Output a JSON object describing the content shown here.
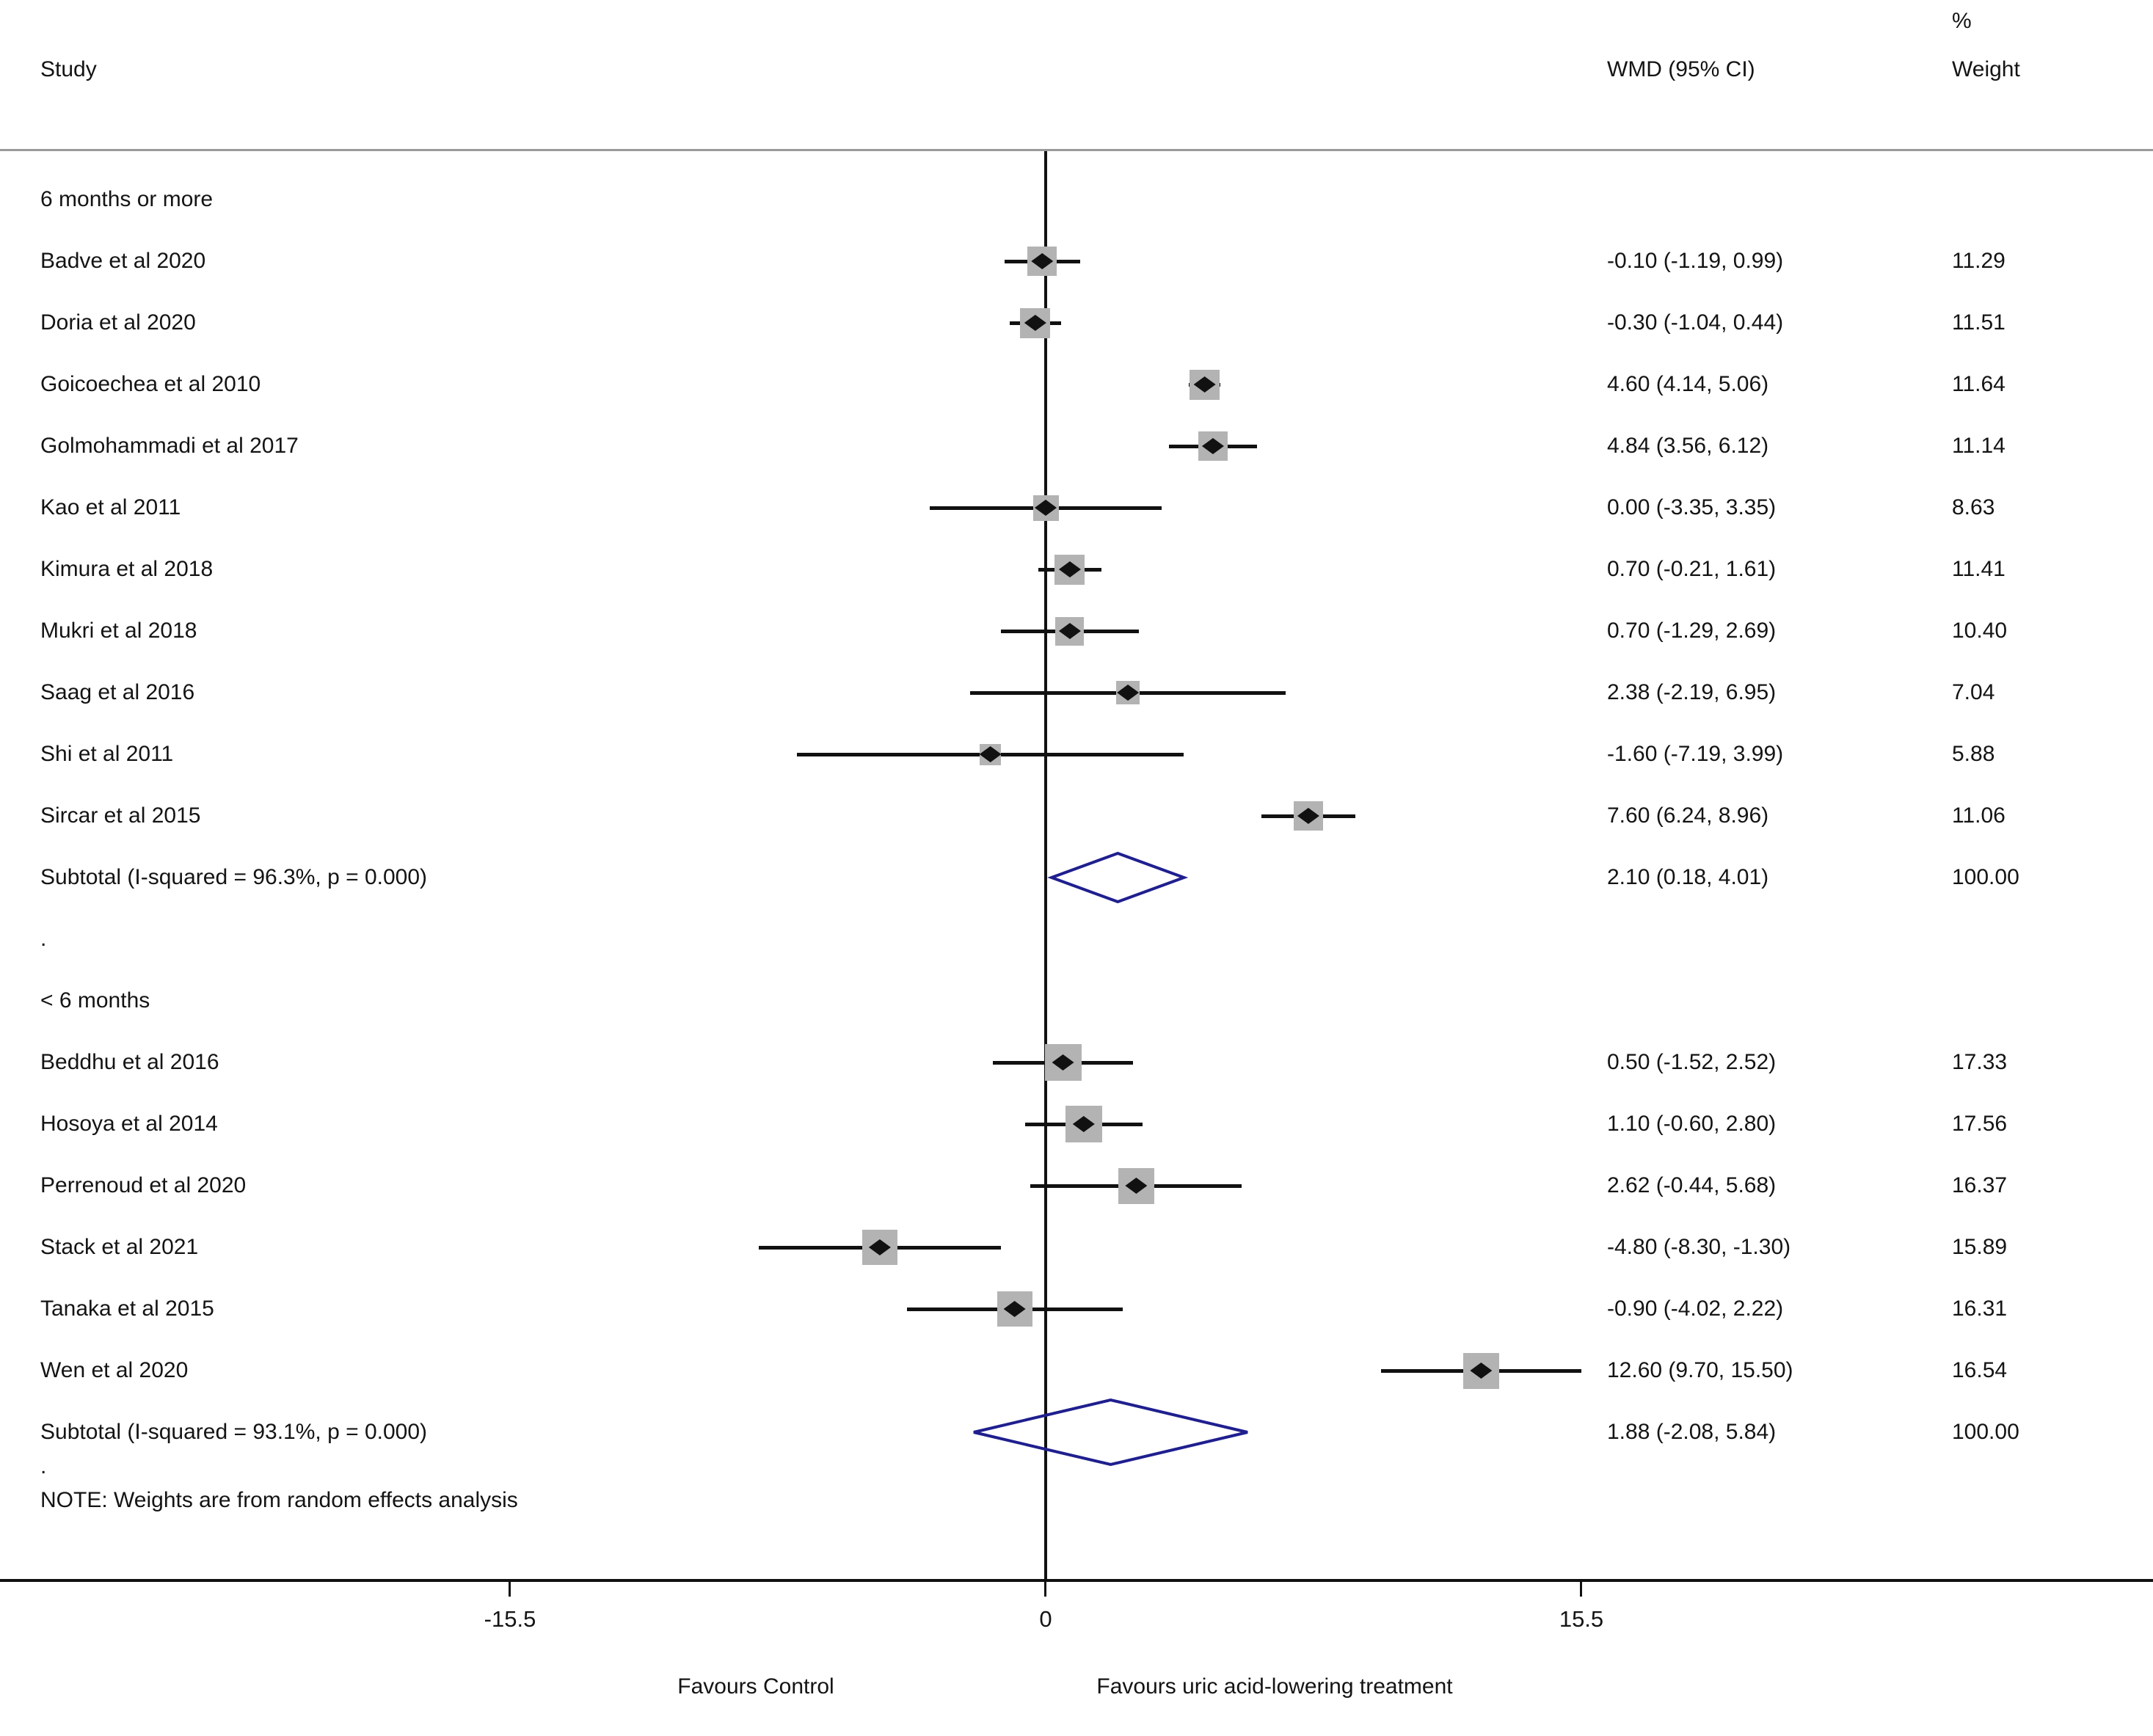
{
  "header": {
    "study": "Study",
    "wmd": "WMD (95% CI)",
    "percent": "%",
    "weight": "Weight"
  },
  "dot": ".",
  "note": "NOTE: Weights are from random effects analysis",
  "axis": {
    "ticks": [
      -15.5,
      0,
      15.5
    ],
    "tick_labels": [
      "-15.5",
      "0",
      "15.5"
    ],
    "left_label": "Favours Control",
    "right_label": "Favours uric acid-lowering treatment"
  },
  "colors": {
    "text": "#141414",
    "ci_line": "#111111",
    "square": "#b3b3b3",
    "marker": "#111111",
    "diamond": "#1f1f8f"
  },
  "chart_data": {
    "type": "forest",
    "title": "",
    "xlabel_left": "Favours Control",
    "xlabel_right": "Favours uric acid-lowering treatment",
    "x_ticks": [
      -15.5,
      0,
      15.5
    ],
    "effect_measure": "WMD (95% CI)",
    "groups": [
      {
        "label": "6 months or more",
        "studies": [
          {
            "name": "Badve et al 2020",
            "wmd": -0.1,
            "lo": -1.19,
            "hi": 0.99,
            "ci_label": "-0.10 (-1.19, 0.99)",
            "weight": 11.29,
            "weight_label": "11.29"
          },
          {
            "name": "Doria et al 2020",
            "wmd": -0.3,
            "lo": -1.04,
            "hi": 0.44,
            "ci_label": "-0.30 (-1.04, 0.44)",
            "weight": 11.51,
            "weight_label": "11.51"
          },
          {
            "name": "Goicoechea et al 2010",
            "wmd": 4.6,
            "lo": 4.14,
            "hi": 5.06,
            "ci_label": "4.60 (4.14, 5.06)",
            "weight": 11.64,
            "weight_label": "11.64"
          },
          {
            "name": "Golmohammadi et al 2017",
            "wmd": 4.84,
            "lo": 3.56,
            "hi": 6.12,
            "ci_label": "4.84 (3.56, 6.12)",
            "weight": 11.14,
            "weight_label": "11.14"
          },
          {
            "name": "Kao et al 2011",
            "wmd": 0.0,
            "lo": -3.35,
            "hi": 3.35,
            "ci_label": "0.00 (-3.35, 3.35)",
            "weight": 8.63,
            "weight_label": "8.63"
          },
          {
            "name": "Kimura et al 2018",
            "wmd": 0.7,
            "lo": -0.21,
            "hi": 1.61,
            "ci_label": "0.70 (-0.21, 1.61)",
            "weight": 11.41,
            "weight_label": "11.41"
          },
          {
            "name": "Mukri et al 2018",
            "wmd": 0.7,
            "lo": -1.29,
            "hi": 2.69,
            "ci_label": "0.70 (-1.29, 2.69)",
            "weight": 10.4,
            "weight_label": "10.40"
          },
          {
            "name": "Saag et al 2016",
            "wmd": 2.38,
            "lo": -2.19,
            "hi": 6.95,
            "ci_label": "2.38 (-2.19, 6.95)",
            "weight": 7.04,
            "weight_label": "7.04"
          },
          {
            "name": "Shi et al 2011",
            "wmd": -1.6,
            "lo": -7.19,
            "hi": 3.99,
            "ci_label": "-1.60 (-7.19, 3.99)",
            "weight": 5.88,
            "weight_label": "5.88"
          },
          {
            "name": "Sircar et al 2015",
            "wmd": 7.6,
            "lo": 6.24,
            "hi": 8.96,
            "ci_label": "7.60 (6.24, 8.96)",
            "weight": 11.06,
            "weight_label": "11.06"
          }
        ],
        "subtotal": {
          "name": "Subtotal  (I-squared = 96.3%, p = 0.000)",
          "wmd": 2.1,
          "lo": 0.18,
          "hi": 4.01,
          "ci_label": "2.10 (0.18, 4.01)",
          "weight_label": "100.00"
        }
      },
      {
        "label": "< 6 months",
        "studies": [
          {
            "name": "Beddhu et al 2016",
            "wmd": 0.5,
            "lo": -1.52,
            "hi": 2.52,
            "ci_label": "0.50 (-1.52, 2.52)",
            "weight": 17.33,
            "weight_label": "17.33"
          },
          {
            "name": "Hosoya et al 2014",
            "wmd": 1.1,
            "lo": -0.6,
            "hi": 2.8,
            "ci_label": "1.10 (-0.60, 2.80)",
            "weight": 17.56,
            "weight_label": "17.56"
          },
          {
            "name": "Perrenoud et al 2020",
            "wmd": 2.62,
            "lo": -0.44,
            "hi": 5.68,
            "ci_label": "2.62 (-0.44, 5.68)",
            "weight": 16.37,
            "weight_label": "16.37"
          },
          {
            "name": "Stack et al 2021",
            "wmd": -4.8,
            "lo": -8.3,
            "hi": -1.3,
            "ci_label": "-4.80 (-8.30, -1.30)",
            "weight": 15.89,
            "weight_label": "15.89"
          },
          {
            "name": "Tanaka et al 2015",
            "wmd": -0.9,
            "lo": -4.02,
            "hi": 2.22,
            "ci_label": "-0.90 (-4.02, 2.22)",
            "weight": 16.31,
            "weight_label": "16.31"
          },
          {
            "name": "Wen et al 2020",
            "wmd": 12.6,
            "lo": 9.7,
            "hi": 15.5,
            "ci_label": "12.60 (9.70, 15.50)",
            "weight": 16.54,
            "weight_label": "16.54"
          }
        ],
        "subtotal": {
          "name": "Subtotal  (I-squared = 93.1%, p = 0.000)",
          "wmd": 1.88,
          "lo": -2.08,
          "hi": 5.84,
          "ci_label": "1.88 (-2.08, 5.84)",
          "weight_label": "100.00"
        }
      }
    ]
  }
}
